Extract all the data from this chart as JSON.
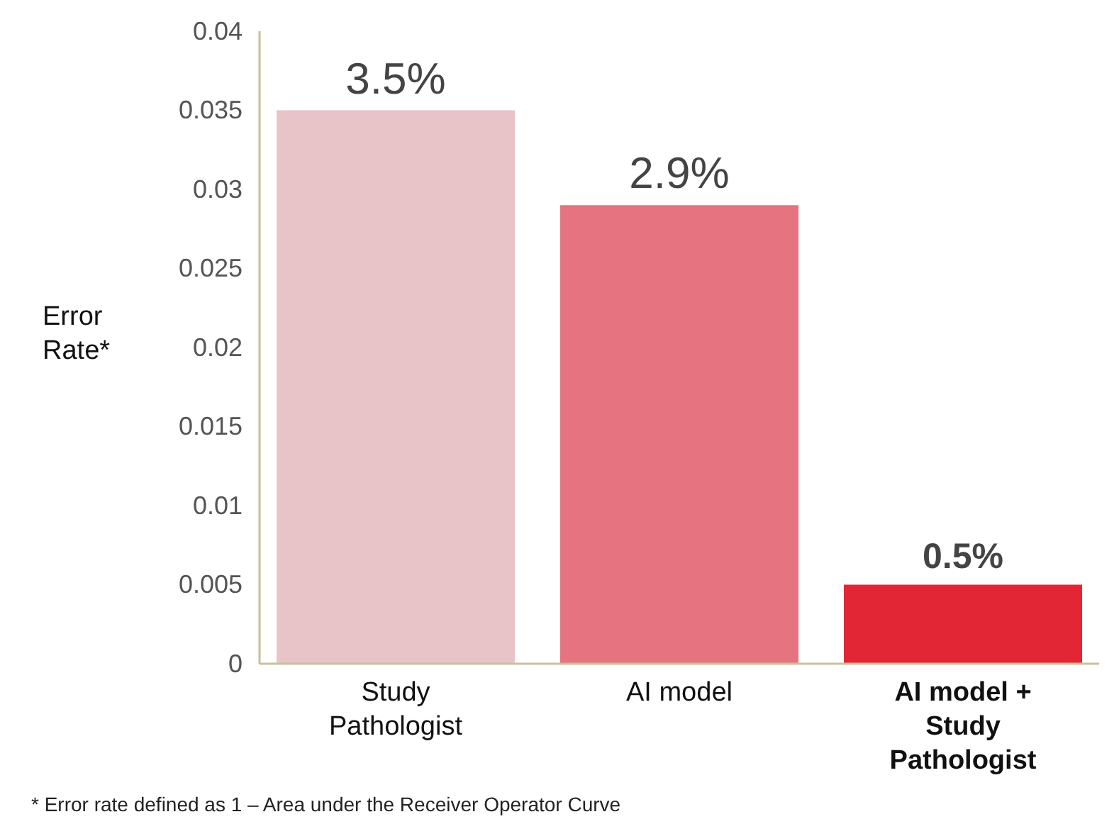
{
  "chart_data": {
    "type": "bar",
    "ylabel": "Error Rate*",
    "categories": [
      "Study Pathologist",
      "AI model",
      "AI model + Study Pathologist"
    ],
    "values": [
      0.035,
      0.029,
      0.005
    ],
    "colors": [
      "#e8c4c8",
      "#e57480",
      "#e32636"
    ],
    "value_labels": [
      "3.5%",
      "2.9%",
      "0.5%"
    ],
    "ylim": [
      0,
      0.04
    ],
    "yticks": [
      0,
      0.005,
      0.01,
      0.015,
      0.02,
      0.025,
      0.03,
      0.035,
      0.04
    ],
    "grid": false,
    "annotations": [
      "* Error rate defined as 1 – Area under the Receiver Operator Curve"
    ]
  }
}
